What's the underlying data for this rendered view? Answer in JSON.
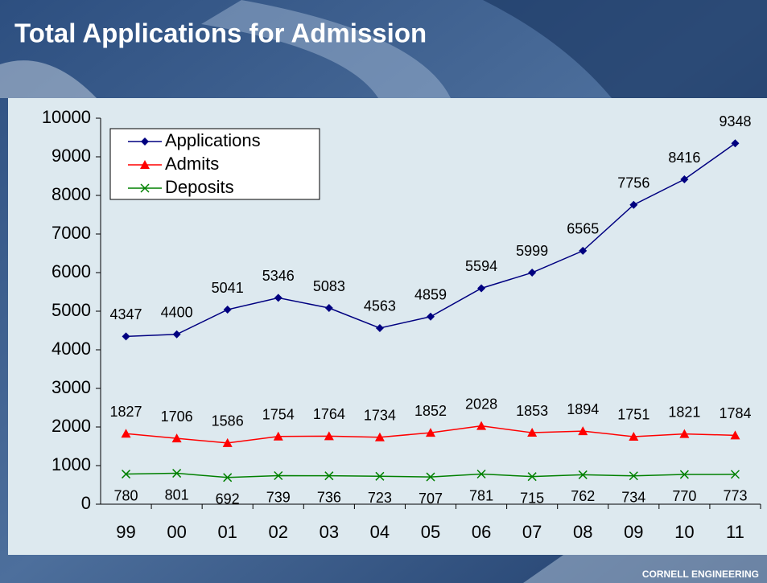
{
  "chart_data": {
    "type": "line",
    "title": "Total Applications for Admission",
    "categories": [
      "99",
      "00",
      "01",
      "02",
      "03",
      "04",
      "05",
      "06",
      "07",
      "08",
      "09",
      "10",
      "11"
    ],
    "series": [
      {
        "name": "Applications",
        "color": "#000080",
        "marker": "diamond",
        "label_position": "above",
        "values": [
          4347,
          4400,
          5041,
          5346,
          5083,
          4563,
          4859,
          5594,
          5999,
          6565,
          7756,
          8416,
          9348
        ]
      },
      {
        "name": "Admits",
        "color": "#ff0000",
        "marker": "triangle",
        "label_position": "above",
        "values": [
          1827,
          1706,
          1586,
          1754,
          1764,
          1734,
          1852,
          2028,
          1853,
          1894,
          1751,
          1821,
          1784
        ]
      },
      {
        "name": "Deposits",
        "color": "#008000",
        "marker": "x",
        "label_position": "below",
        "values": [
          780,
          801,
          692,
          739,
          736,
          723,
          707,
          781,
          715,
          762,
          734,
          770,
          773
        ]
      }
    ],
    "ylim": [
      0,
      10000
    ],
    "yticks": [
      0,
      1000,
      2000,
      3000,
      4000,
      5000,
      6000,
      7000,
      8000,
      9000,
      10000
    ],
    "grid": false,
    "legend": "upper left"
  },
  "footer": "CORNELL ENGINEERING"
}
